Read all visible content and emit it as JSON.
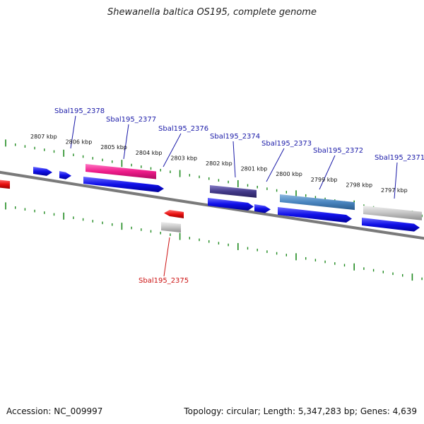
{
  "title": "Shewanella baltica OS195, complete genome",
  "footer": {
    "accession": "Accession: NC_009997",
    "summary": "Topology: circular; Length: 5,347,283 bp; Genes: 4,639"
  },
  "colors": {
    "background": "#ffffff",
    "backbone": "#7a7a7a",
    "tick": "#1f8a1f",
    "label_link_blue": "#1a1aa8",
    "label_link_red": "#cc1111",
    "cds": "#1414e0",
    "cds_reverse": "#e01414"
  },
  "ruler": {
    "tick_labels": [
      "2807 kbp",
      "2806 kbp",
      "2805 kbp",
      "2804 kbp",
      "2803 kbp",
      "2802 kbp",
      "2801 kbp",
      "2800 kbp",
      "2799 kbp",
      "2798 kbp",
      "2797 kbp"
    ]
  },
  "genes": [
    {
      "name": "Sbal195_2378",
      "strand": "forward"
    },
    {
      "name": "Sbal195_2377",
      "strand": "forward"
    },
    {
      "name": "Sbal195_2376",
      "strand": "forward"
    },
    {
      "name": "Sbal195_2375",
      "strand": "reverse"
    },
    {
      "name": "Sbal195_2374",
      "strand": "forward"
    },
    {
      "name": "Sbal195_2373",
      "strand": "forward"
    },
    {
      "name": "Sbal195_2372",
      "strand": "forward"
    },
    {
      "name": "Sbal195_2371",
      "strand": "forward"
    }
  ]
}
